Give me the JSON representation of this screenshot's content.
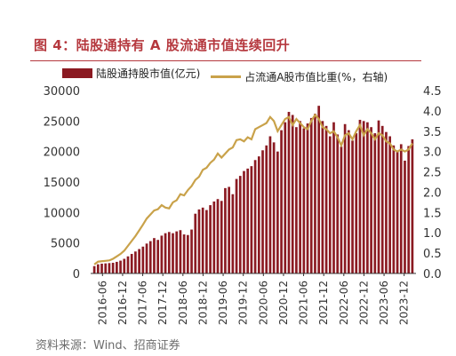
{
  "figure": {
    "title": "图 4：陆股通持有 A 股流通市值连续回升",
    "source": "资料来源：Wind、招商证券"
  },
  "colors": {
    "bar": "#8b1a22",
    "line": "#c9a24a",
    "accent": "#b5383e"
  },
  "chart_data": {
    "type": "bar",
    "x_tick_labels": [
      "2016-06",
      "2016-12",
      "2017-06",
      "2017-12",
      "2018-06",
      "2018-12",
      "2019-06",
      "2019-12",
      "2020-06",
      "2020-12",
      "2021-06",
      "2021-12",
      "2022-06",
      "2022-12",
      "2023-06",
      "2023-12"
    ],
    "series": [
      {
        "name": "陆股通持股市值(亿元)",
        "type": "bar",
        "axis": "left",
        "values": [
          1200,
          1500,
          1600,
          1650,
          1700,
          1750,
          1900,
          2100,
          2400,
          2800,
          3200,
          3600,
          4000,
          4400,
          4900,
          5300,
          5800,
          5500,
          6200,
          6600,
          6800,
          6600,
          6900,
          7100,
          6400,
          6300,
          7200,
          9800,
          10500,
          10800,
          10400,
          11200,
          11800,
          12200,
          11900,
          14000,
          14200,
          13000,
          15500,
          16000,
          16800,
          17200,
          17600,
          18600,
          19200,
          20200,
          21000,
          22500,
          21500,
          20000,
          23500,
          24800,
          26500,
          26000,
          24000,
          25000,
          23800,
          24600,
          25500,
          26200,
          27500,
          25000,
          24200,
          22500,
          24800,
          22800,
          20800,
          24500,
          23500,
          21800,
          23000,
          25200,
          25000,
          24800,
          24000,
          23000,
          25100,
          24200,
          23200,
          22500,
          21000,
          20000,
          21200,
          18500,
          20900,
          22000
        ]
      },
      {
        "name": "占流通A股市值比重(%，右轴)",
        "type": "line",
        "axis": "right",
        "values": [
          0.22,
          0.29,
          0.3,
          0.31,
          0.32,
          0.36,
          0.42,
          0.48,
          0.56,
          0.68,
          0.8,
          0.92,
          1.06,
          1.2,
          1.35,
          1.45,
          1.55,
          1.58,
          1.68,
          1.62,
          1.6,
          1.75,
          1.8,
          1.95,
          1.92,
          2.05,
          2.15,
          2.3,
          2.38,
          2.55,
          2.6,
          2.72,
          2.8,
          2.95,
          2.85,
          2.95,
          3.05,
          3.1,
          3.28,
          3.3,
          3.25,
          3.35,
          3.3,
          3.55,
          3.6,
          3.65,
          3.7,
          3.85,
          3.75,
          3.5,
          3.65,
          3.8,
          3.85,
          3.65,
          3.8,
          3.7,
          3.6,
          3.55,
          3.75,
          3.9,
          3.8,
          3.6,
          3.55,
          3.45,
          3.5,
          3.35,
          3.15,
          3.4,
          3.45,
          3.3,
          3.5,
          3.65,
          3.4,
          3.55,
          3.45,
          3.3,
          3.45,
          3.4,
          3.25,
          3.2,
          3.05,
          3.0,
          3.05,
          3.0,
          3.05,
          3.2
        ]
      }
    ],
    "y_left": {
      "lim": [
        0,
        30000
      ],
      "ticks": [
        0,
        5000,
        10000,
        15000,
        20000,
        25000,
        30000
      ]
    },
    "y_right": {
      "lim": [
        0,
        4.5
      ],
      "ticks": [
        "0.0",
        "0.5",
        "1.0",
        "1.5",
        "2.0",
        "2.5",
        "3.0",
        "3.5",
        "4.0",
        "4.5"
      ]
    },
    "grid": false,
    "legend_position": "top"
  }
}
